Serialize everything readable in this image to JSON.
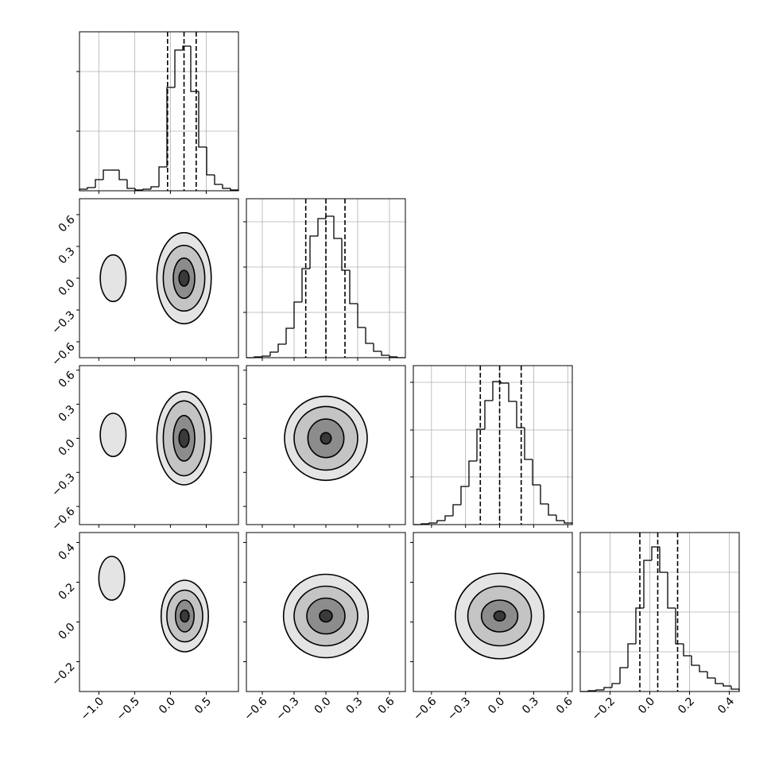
{
  "chart_data": {
    "type": "corner",
    "grid": true,
    "color": "#000000",
    "params": [
      {
        "lim": [
          -1.27,
          0.95
        ],
        "ticks": [
          {
            "value": -1,
            "label": "−1.0"
          },
          {
            "value": -0.5,
            "label": "−0.5"
          },
          {
            "value": 0,
            "label": "0.0"
          },
          0.5
        ],
        "quantiles": [
          -0.04,
          0.19,
          0.36
        ],
        "hist": {
          "bins": [
            -1.27,
            -1.159,
            -1.048,
            -0.937,
            -0.826,
            -0.715,
            -0.604,
            -0.493,
            -0.382,
            -0.271,
            -0.16,
            -0.049,
            0.062,
            0.173,
            0.284,
            0.395,
            0.506,
            0.617,
            0.728,
            0.839,
            0.95
          ],
          "counts": [
            2,
            4,
            14,
            26,
            26,
            14,
            3,
            1,
            2,
            5,
            30,
            130,
            177,
            182,
            125,
            55,
            20,
            8,
            3,
            1
          ],
          "ylim": [
            0,
            200
          ],
          "yticks": [
            75,
            150
          ]
        }
      },
      {
        "lim": [
          -0.75,
          0.75
        ],
        "ticks": [
          {
            "value": -0.6,
            "label": "−0.6"
          },
          {
            "value": -0.3,
            "label": "−0.3"
          },
          {
            "value": 0,
            "label": "0.0"
          },
          0.3,
          0.6
        ],
        "quantiles": [
          -0.19,
          0,
          0.18
        ],
        "hist": {
          "bins": [
            -0.75,
            -0.675,
            -0.6,
            -0.525,
            -0.45,
            -0.375,
            -0.3,
            -0.225,
            -0.15,
            -0.075,
            0,
            0.075,
            0.15,
            0.225,
            0.3,
            0.375,
            0.45,
            0.525,
            0.6,
            0.675,
            0.75
          ],
          "counts": [
            0,
            1,
            2,
            7,
            17,
            37,
            70,
            112,
            153,
            175,
            178,
            150,
            110,
            68,
            38,
            18,
            8,
            3,
            1,
            0
          ],
          "ylim": [
            0,
            200
          ],
          "yticks": [
            57,
            114,
            171
          ]
        }
      },
      {
        "lim": [
          -0.76,
          0.64
        ],
        "ticks": [
          {
            "value": -0.6,
            "label": "−0.6"
          },
          {
            "value": -0.3,
            "label": "−0.3"
          },
          {
            "value": 0,
            "label": "0.0"
          },
          0.3,
          0.6
        ],
        "quantiles": [
          -0.17,
          0,
          0.19
        ],
        "hist": {
          "bins": [
            -0.76,
            -0.69,
            -0.62,
            -0.55,
            -0.48,
            -0.41,
            -0.34,
            -0.27,
            -0.2,
            -0.13,
            -0.06,
            0.01,
            0.08,
            0.15,
            0.22,
            0.29,
            0.36,
            0.43,
            0.5,
            0.57,
            0.64
          ],
          "counts": [
            0,
            1,
            2,
            5,
            11,
            25,
            48,
            80,
            120,
            156,
            180,
            178,
            155,
            122,
            82,
            50,
            26,
            12,
            5,
            2
          ],
          "ylim": [
            0,
            200
          ],
          "yticks": [
            60,
            119,
            179
          ]
        }
      },
      {
        "lim": [
          -0.35,
          0.45
        ],
        "ticks": [
          {
            "value": -0.2,
            "label": "−0.2"
          },
          {
            "value": 0,
            "label": "0.0"
          },
          0.2,
          0.4
        ],
        "quantiles": [
          -0.05,
          0.04,
          0.14
        ],
        "hist": {
          "bins": [
            -0.35,
            -0.31,
            -0.27,
            -0.23,
            -0.19,
            -0.15,
            -0.11,
            -0.07,
            -0.03,
            0.01,
            0.05,
            0.09,
            0.13,
            0.17,
            0.21,
            0.25,
            0.29,
            0.33,
            0.37,
            0.41,
            0.45
          ],
          "counts": [
            0,
            1,
            2,
            5,
            10,
            30,
            60,
            105,
            165,
            182,
            150,
            105,
            60,
            45,
            33,
            25,
            17,
            10,
            7,
            3
          ],
          "ylim": [
            0,
            200
          ],
          "yticks": [
            50,
            100,
            150
          ]
        }
      }
    ],
    "pairs": [
      {
        "x": 0,
        "y": 1,
        "contours": [
          {
            "cx": -0.8,
            "cy": 0,
            "rx": 0.18,
            "ry": 0.22
          },
          {
            "cx": 0.19,
            "cy": 0,
            "rx": 0.38,
            "ry": 0.43
          },
          {
            "cx": 0.19,
            "cy": 0,
            "rx": 0.29,
            "ry": 0.31
          },
          {
            "cx": 0.19,
            "cy": 0,
            "rx": 0.15,
            "ry": 0.19
          },
          {
            "cx": 0.19,
            "cy": 0,
            "rx": 0.07,
            "ry": 0.075
          }
        ]
      },
      {
        "x": 0,
        "y": 2,
        "contours": [
          {
            "cx": -0.8,
            "cy": 0.03,
            "rx": 0.18,
            "ry": 0.19
          },
          {
            "cx": 0.19,
            "cy": 0,
            "rx": 0.38,
            "ry": 0.41
          },
          {
            "cx": 0.19,
            "cy": 0,
            "rx": 0.29,
            "ry": 0.33
          },
          {
            "cx": 0.19,
            "cy": 0,
            "rx": 0.15,
            "ry": 0.2
          },
          {
            "cx": 0.19,
            "cy": 0,
            "rx": 0.07,
            "ry": 0.08
          }
        ]
      },
      {
        "x": 0,
        "y": 3,
        "contours": [
          {
            "cx": -0.82,
            "cy": 0.22,
            "rx": 0.18,
            "ry": 0.11
          },
          {
            "cx": 0.2,
            "cy": 0.03,
            "rx": 0.33,
            "ry": 0.18
          },
          {
            "cx": 0.2,
            "cy": 0.03,
            "rx": 0.25,
            "ry": 0.13
          },
          {
            "cx": 0.2,
            "cy": 0.03,
            "rx": 0.13,
            "ry": 0.08
          },
          {
            "cx": 0.2,
            "cy": 0.03,
            "rx": 0.06,
            "ry": 0.03
          }
        ]
      },
      {
        "x": 1,
        "y": 2,
        "contours": [
          {
            "cx": 0,
            "cy": 0,
            "rx": 0.39,
            "ry": 0.37
          },
          {
            "cx": 0,
            "cy": 0,
            "rx": 0.3,
            "ry": 0.28
          },
          {
            "cx": 0,
            "cy": 0,
            "rx": 0.17,
            "ry": 0.17
          },
          {
            "cx": 0,
            "cy": 0,
            "rx": 0.05,
            "ry": 0.05
          }
        ]
      },
      {
        "x": 1,
        "y": 3,
        "contours": [
          {
            "cx": 0,
            "cy": 0.03,
            "rx": 0.4,
            "ry": 0.21
          },
          {
            "cx": 0,
            "cy": 0.03,
            "rx": 0.3,
            "ry": 0.15
          },
          {
            "cx": 0,
            "cy": 0.03,
            "rx": 0.18,
            "ry": 0.09
          },
          {
            "cx": 0,
            "cy": 0.03,
            "rx": 0.06,
            "ry": 0.03
          }
        ]
      },
      {
        "x": 2,
        "y": 3,
        "contours": [
          {
            "cx": 0,
            "cy": 0.03,
            "rx": 0.39,
            "ry": 0.215
          },
          {
            "cx": 0,
            "cy": 0.03,
            "rx": 0.28,
            "ry": 0.15
          },
          {
            "cx": 0,
            "cy": 0.03,
            "rx": 0.16,
            "ry": 0.08
          },
          {
            "cx": 0,
            "cy": 0.03,
            "rx": 0.05,
            "ry": 0.025
          }
        ]
      }
    ]
  }
}
